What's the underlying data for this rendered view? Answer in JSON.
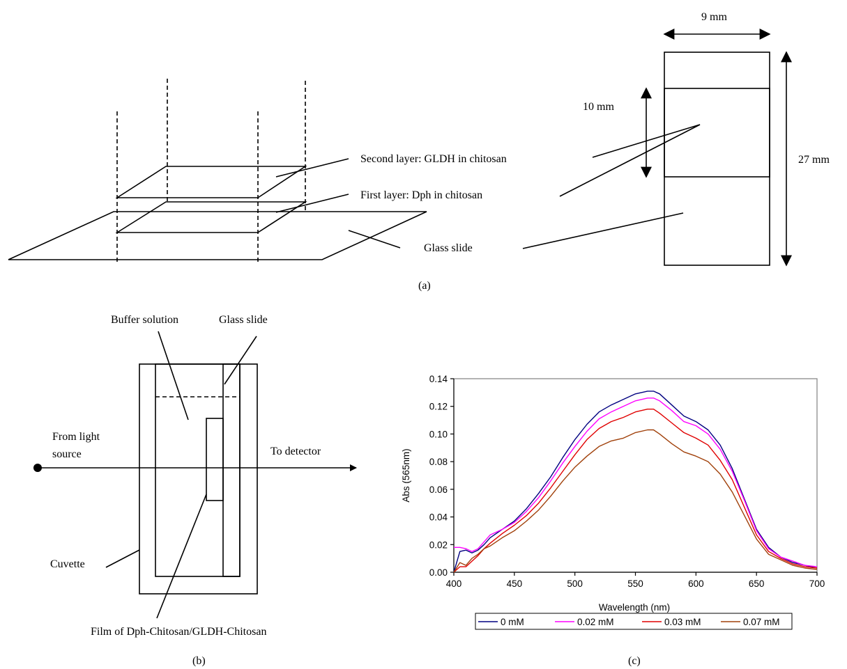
{
  "panel_a": {
    "label_second_layer": "Second layer: GLDH in chitosan",
    "label_first_layer": "First layer: Dph in chitosan",
    "label_glass_slide": "Glass slide",
    "dim_width": "9 mm",
    "dim_film": "10 mm",
    "dim_length": "27 mm",
    "caption": "(a)",
    "colors": {
      "film": "#d8d8d8"
    }
  },
  "panel_b": {
    "label_buffer": "Buffer solution",
    "label_glass_slide": "Glass slide",
    "label_light_line1": "From light",
    "label_light_line2": "source",
    "label_detector": "To detector",
    "label_cuvette": "Cuvette",
    "label_film": "Film of Dph-Chitosan/GLDH-Chitosan",
    "caption": "(b)",
    "colors": {
      "film": "#b8b8b8",
      "glass": "#efefef"
    }
  },
  "panel_c": {
    "caption": "(c)"
  },
  "chart_data": {
    "type": "line",
    "xlabel": "Wavelength (nm)",
    "ylabel": "Abs (565nm)",
    "xlim": [
      400,
      700
    ],
    "ylim": [
      0,
      0.14
    ],
    "xticks": [
      "400",
      "450",
      "500",
      "550",
      "600",
      "650",
      "700"
    ],
    "yticks": [
      "0.00",
      "0.02",
      "0.04",
      "0.06",
      "0.08",
      "0.10",
      "0.12",
      "0.14"
    ],
    "grid": false,
    "legend_position": "bottom",
    "x": [
      400,
      405,
      410,
      415,
      420,
      425,
      430,
      440,
      450,
      460,
      470,
      480,
      490,
      500,
      510,
      520,
      530,
      540,
      550,
      560,
      565,
      570,
      580,
      590,
      600,
      610,
      620,
      630,
      640,
      650,
      660,
      670,
      680,
      690,
      700
    ],
    "series": [
      {
        "name": "0 mM",
        "color": "#000080",
        "values": [
          0.0,
          0.015,
          0.016,
          0.014,
          0.016,
          0.02,
          0.025,
          0.031,
          0.037,
          0.046,
          0.057,
          0.069,
          0.083,
          0.096,
          0.107,
          0.116,
          0.121,
          0.125,
          0.129,
          0.131,
          0.131,
          0.129,
          0.121,
          0.113,
          0.109,
          0.103,
          0.092,
          0.075,
          0.053,
          0.031,
          0.018,
          0.011,
          0.007,
          0.005,
          0.003
        ]
      },
      {
        "name": "0.02 mM",
        "color": "#ff00ff",
        "values": [
          0.018,
          0.018,
          0.017,
          0.015,
          0.017,
          0.022,
          0.027,
          0.031,
          0.036,
          0.044,
          0.054,
          0.066,
          0.079,
          0.091,
          0.102,
          0.111,
          0.116,
          0.12,
          0.124,
          0.126,
          0.126,
          0.124,
          0.117,
          0.109,
          0.106,
          0.1,
          0.089,
          0.073,
          0.052,
          0.03,
          0.017,
          0.011,
          0.008,
          0.005,
          0.004
        ]
      },
      {
        "name": "0.03 mM",
        "color": "#e00000",
        "values": [
          0.0,
          0.004,
          0.004,
          0.008,
          0.012,
          0.017,
          0.021,
          0.028,
          0.034,
          0.041,
          0.05,
          0.061,
          0.073,
          0.085,
          0.096,
          0.104,
          0.109,
          0.112,
          0.116,
          0.118,
          0.118,
          0.115,
          0.108,
          0.101,
          0.097,
          0.092,
          0.081,
          0.067,
          0.047,
          0.027,
          0.015,
          0.01,
          0.006,
          0.004,
          0.003
        ]
      },
      {
        "name": "0.07 mM",
        "color": "#a0400a",
        "values": [
          0.0,
          0.007,
          0.005,
          0.01,
          0.013,
          0.017,
          0.019,
          0.025,
          0.03,
          0.037,
          0.045,
          0.055,
          0.066,
          0.076,
          0.084,
          0.091,
          0.095,
          0.097,
          0.101,
          0.103,
          0.103,
          0.1,
          0.093,
          0.087,
          0.084,
          0.08,
          0.071,
          0.058,
          0.041,
          0.024,
          0.013,
          0.009,
          0.005,
          0.003,
          0.002
        ]
      }
    ]
  }
}
